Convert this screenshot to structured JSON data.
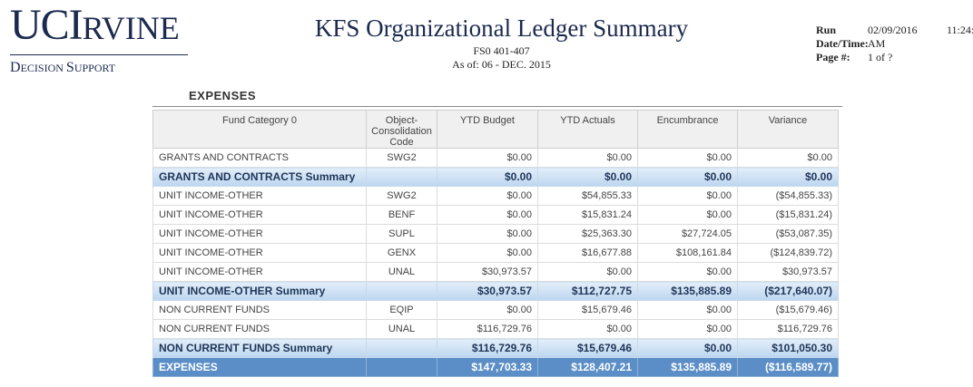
{
  "logo": {
    "line1_big": "UCI",
    "line1_small": "RVINE",
    "line2_a": "D",
    "line2_b": "ECISION ",
    "line2_c": "S",
    "line2_d": "UPPORT"
  },
  "report": {
    "title": "KFS Organizational Ledger Summary",
    "code": "FS0 401-407",
    "as_of": "As of: 06 - DEC. 2015"
  },
  "run_info": {
    "run_label": "Run",
    "date_time_label": "Date/Time:",
    "run_date": "02/09/2016",
    "run_time": "11:24:",
    "am_pm": "AM",
    "page_label": "Page #:",
    "page_value": "1 of ?"
  },
  "section": {
    "title": "EXPENSES"
  },
  "table": {
    "headers": {
      "fund": "Fund Category 0",
      "object": "Object-Consolidation Code",
      "ytd_budget": "YTD Budget",
      "ytd_actuals": "YTD Actuals",
      "encumbrance": "Encumbrance",
      "variance": "Variance"
    },
    "rows": [
      {
        "fund": "GRANTS AND CONTRACTS",
        "code": "SWG2",
        "budget": "$0.00",
        "actuals": "$0.00",
        "enc": "$0.00",
        "var": "$0.00"
      },
      {
        "fund": "GRANTS AND CONTRACTS  Summary",
        "code": "",
        "budget": "$0.00",
        "actuals": "$0.00",
        "enc": "$0.00",
        "var": "$0.00"
      },
      {
        "fund": "UNIT INCOME-OTHER",
        "code": "SWG2",
        "budget": "$0.00",
        "actuals": "$54,855.33",
        "enc": "$0.00",
        "var": "($54,855.33)"
      },
      {
        "fund": "UNIT INCOME-OTHER",
        "code": "BENF",
        "budget": "$0.00",
        "actuals": "$15,831.24",
        "enc": "$0.00",
        "var": "($15,831.24)"
      },
      {
        "fund": "UNIT INCOME-OTHER",
        "code": "SUPL",
        "budget": "$0.00",
        "actuals": "$25,363.30",
        "enc": "$27,724.05",
        "var": "($53,087.35)"
      },
      {
        "fund": "UNIT INCOME-OTHER",
        "code": "GENX",
        "budget": "$0.00",
        "actuals": "$16,677.88",
        "enc": "$108,161.84",
        "var": "($124,839.72)"
      },
      {
        "fund": "UNIT INCOME-OTHER",
        "code": "UNAL",
        "budget": "$30,973.57",
        "actuals": "$0.00",
        "enc": "$0.00",
        "var": "$30,973.57"
      },
      {
        "fund": "UNIT INCOME-OTHER  Summary",
        "code": "",
        "budget": "$30,973.57",
        "actuals": "$112,727.75",
        "enc": "$135,885.89",
        "var": "($217,640.07)"
      },
      {
        "fund": "NON CURRENT FUNDS",
        "code": "EQIP",
        "budget": "$0.00",
        "actuals": "$15,679.46",
        "enc": "$0.00",
        "var": "($15,679.46)"
      },
      {
        "fund": "NON CURRENT FUNDS",
        "code": "UNAL",
        "budget": "$116,729.76",
        "actuals": "$0.00",
        "enc": "$0.00",
        "var": "$116,729.76"
      },
      {
        "fund": "NON CURRENT FUNDS  Summary",
        "code": "",
        "budget": "$116,729.76",
        "actuals": "$15,679.46",
        "enc": "$0.00",
        "var": "$101,050.30"
      },
      {
        "fund": "EXPENSES",
        "code": "",
        "budget": "$147,703.33",
        "actuals": "$128,407.21",
        "enc": "$135,885.89",
        "var": "($116,589.77)"
      }
    ]
  }
}
